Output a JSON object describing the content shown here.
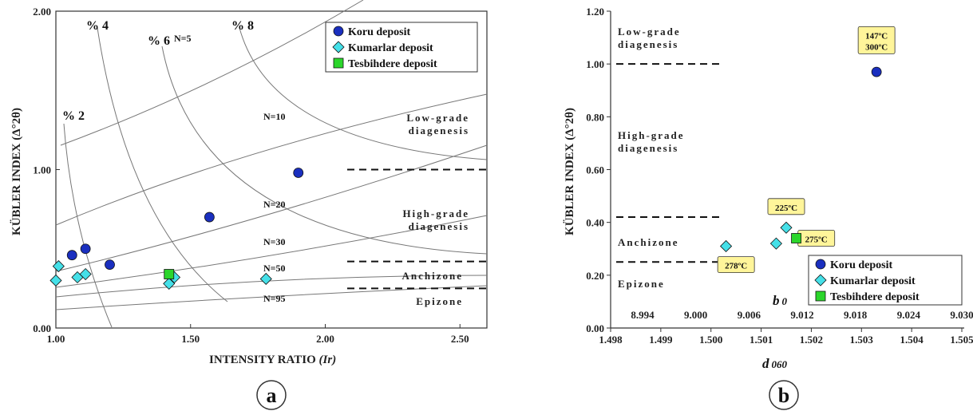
{
  "colors": {
    "koru": "#1a2fbf",
    "kumarlar": "#45e0e8",
    "tesbihdere": "#2bd62b",
    "callout": "#fff59a"
  },
  "chart_data": [
    {
      "type": "scatter",
      "panel_label": "a",
      "xlabel": "INTENSITY RATIO",
      "xlabel_italic": "(Ir)",
      "ylabel": "KÜBLER INDEX (Δ°2θ)",
      "xlim": [
        1.0,
        2.6
      ],
      "ylim": [
        0.0,
        2.0
      ],
      "x_ticks": [
        "1.00",
        "1.50",
        "2.00",
        "2.50"
      ],
      "y_ticks": [
        "0.00",
        "1.00",
        "2.00"
      ],
      "grid": false,
      "legend_position": "top-right",
      "series": [
        {
          "name": "Koru deposit",
          "marker": "circle",
          "points": [
            [
              1.06,
              0.46
            ],
            [
              1.11,
              0.5
            ],
            [
              1.2,
              0.4
            ],
            [
              1.57,
              0.7
            ],
            [
              1.9,
              0.98
            ]
          ]
        },
        {
          "name": "Kumarlar deposit",
          "marker": "diamond",
          "points": [
            [
              1.01,
              0.39
            ],
            [
              1.0,
              0.3
            ],
            [
              1.08,
              0.32
            ],
            [
              1.11,
              0.34
            ],
            [
              1.42,
              0.28
            ],
            [
              1.44,
              0.32
            ],
            [
              1.78,
              0.31
            ]
          ]
        },
        {
          "name": "Tesbihdere deposit",
          "marker": "square",
          "points": [
            [
              1.42,
              0.34
            ]
          ]
        }
      ],
      "zones": [
        {
          "label": "Low-grade",
          "label2": "diagenesis",
          "y_label": 1.27
        },
        {
          "label": "High-grade",
          "label2": "diagenesis",
          "y_label": 0.67
        },
        {
          "label": "Anchizone",
          "y_label": 0.33
        },
        {
          "label": "Epizone",
          "y_label": 0.16
        }
      ],
      "boundaries": [
        1.0,
        0.42,
        0.25
      ],
      "n_labels": [
        "N=5",
        "N=10",
        "N=20",
        "N=30",
        "N=50",
        "N=95"
      ],
      "pct_labels": [
        "% 2",
        "% 4",
        "% 6",
        "% 8"
      ]
    },
    {
      "type": "scatter",
      "panel_label": "b",
      "xlabel": "d",
      "xlabel_sub": "060",
      "x2label": "b",
      "x2label_sub": "0",
      "ylabel": "KÜBLER INDEX (Δ°2θ)",
      "xlim": [
        1.498,
        1.505
      ],
      "ylim": [
        0.0,
        1.2
      ],
      "x_ticks": [
        "1.498",
        "1.499",
        "1.500",
        "1.501",
        "1.502",
        "1.503",
        "1.504",
        "1.505"
      ],
      "x2_ticks": [
        "8.994",
        "9.000",
        "9.006",
        "9.012",
        "9.018",
        "9.024",
        "9.030"
      ],
      "y_ticks": [
        "0.00",
        "0.20",
        "0.40",
        "0.60",
        "0.80",
        "1.00",
        "1.20"
      ],
      "grid": false,
      "legend_position": "bottom-right",
      "series": [
        {
          "name": "Koru deposit",
          "marker": "circle",
          "points": [
            [
              1.5033,
              0.97
            ]
          ]
        },
        {
          "name": "Kumarlar deposit",
          "marker": "diamond",
          "points": [
            [
              1.5003,
              0.31
            ],
            [
              1.5013,
              0.32
            ],
            [
              1.5015,
              0.38
            ]
          ]
        },
        {
          "name": "Tesbihdere deposit",
          "marker": "square",
          "points": [
            [
              1.5017,
              0.34
            ]
          ]
        }
      ],
      "zones": [
        {
          "label": "Low-grade",
          "label2": "diagenesis",
          "y_label": 1.13
        },
        {
          "label": "High-grade",
          "label2": "diagenesis",
          "y_label": 0.71
        },
        {
          "label": "Anchizone",
          "y_label": 0.33
        },
        {
          "label": "Epizone",
          "y_label": 0.17
        }
      ],
      "boundaries": [
        1.0,
        0.42,
        0.25
      ],
      "annotations": [
        {
          "lines": [
            "147ºC",
            "300ºC"
          ],
          "x": 1.5033,
          "y": 1.09
        },
        {
          "lines": [
            "225ºC"
          ],
          "x": 1.5015,
          "y": 0.46
        },
        {
          "lines": [
            "275ºC"
          ],
          "x": 1.5021,
          "y": 0.34
        },
        {
          "lines": [
            "278ºC"
          ],
          "x": 1.5005,
          "y": 0.24
        }
      ]
    }
  ]
}
